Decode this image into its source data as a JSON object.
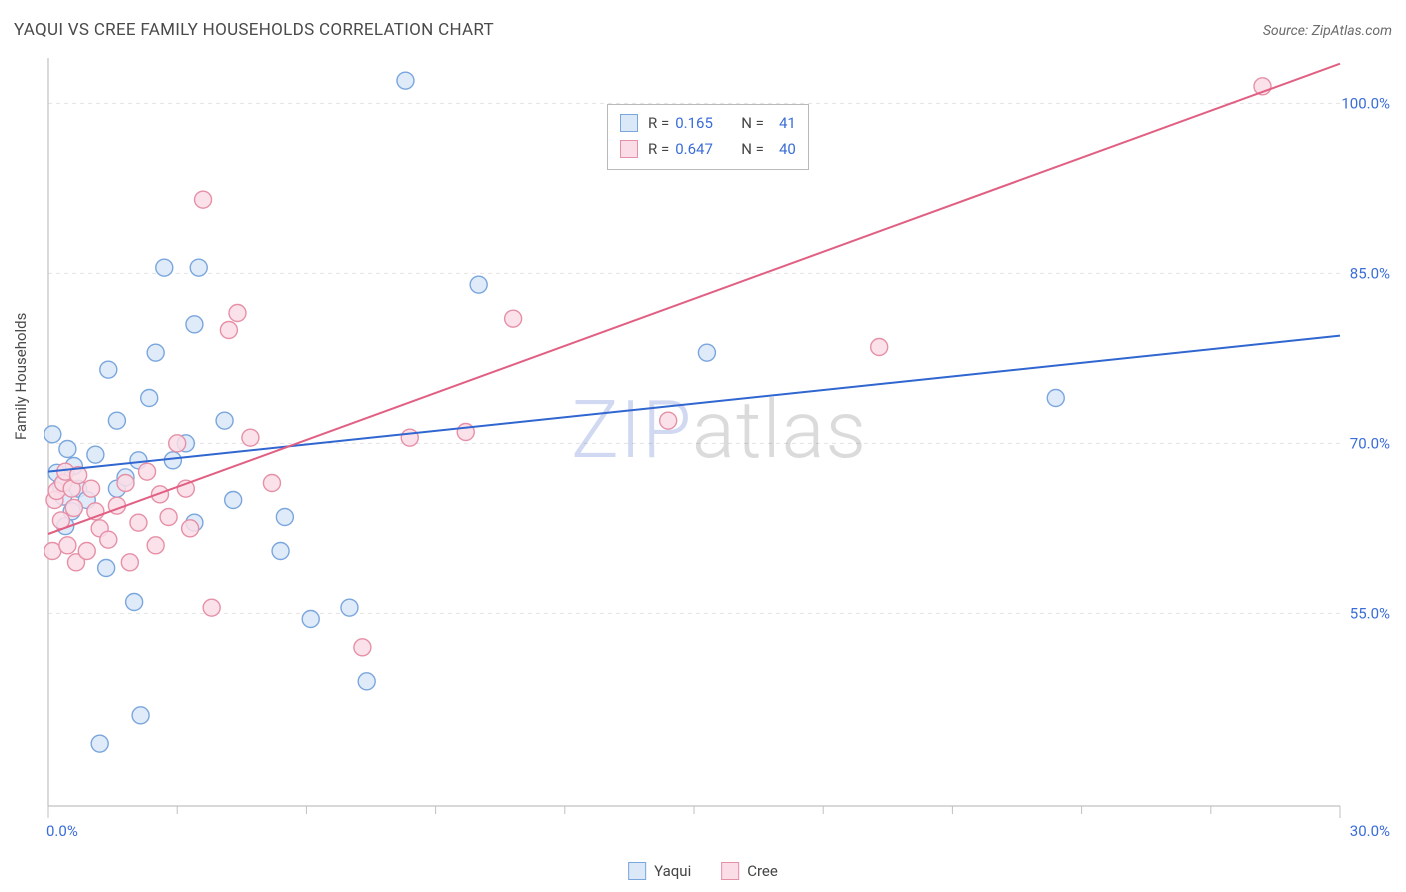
{
  "header": {
    "title": "YAQUI VS CREE FAMILY HOUSEHOLDS CORRELATION CHART",
    "source_prefix": "Source: ",
    "source_name": "ZipAtlas.com"
  },
  "ylabel": "Family Households",
  "watermark": {
    "zip": "ZIP",
    "rest": "atlas"
  },
  "chart": {
    "type": "scatter",
    "background_color": "#ffffff",
    "grid_color": "#e3e3e3",
    "axis_color": "#c0c0c0",
    "tick_color": "#c0c0c0",
    "xlim": [
      0,
      30
    ],
    "ylim": [
      38,
      104
    ],
    "x_ticks_major": [
      0,
      30
    ],
    "x_ticks_minor": [
      3,
      6,
      9,
      12,
      15,
      18,
      21,
      24,
      27
    ],
    "x_tick_labels": {
      "0": "0.0%",
      "30": "30.0%"
    },
    "y_gridlines": [
      55,
      70,
      85,
      100
    ],
    "y_tick_labels": {
      "55": "55.0%",
      "70": "70.0%",
      "85": "85.0%",
      "100": "100.0%"
    },
    "label_color": "#3a6dd8",
    "label_fontsize": 15,
    "marker_radius": 8.5,
    "marker_stroke_width": 1.4,
    "series": {
      "yaqui": {
        "label": "Yaqui",
        "fill": "#dbe8f8",
        "stroke": "#7aa6de",
        "line_color": "#2f66d0",
        "line_width": 2,
        "r": 0.165,
        "n": 41,
        "trend": {
          "x1": 0,
          "y1": 67.5,
          "x2": 30,
          "y2": 79.5
        },
        "points": [
          [
            0.1,
            70.8
          ],
          [
            0.2,
            67.4
          ],
          [
            0.3,
            66.2
          ],
          [
            0.35,
            65.3
          ],
          [
            0.45,
            69.5
          ],
          [
            0.4,
            62.7
          ],
          [
            0.55,
            64.0
          ],
          [
            0.6,
            68.0
          ],
          [
            0.7,
            66.0
          ],
          [
            0.9,
            65.0
          ],
          [
            1.1,
            69.0
          ],
          [
            1.2,
            43.5
          ],
          [
            1.35,
            59.0
          ],
          [
            1.4,
            76.5
          ],
          [
            1.6,
            72.0
          ],
          [
            1.6,
            66.0
          ],
          [
            1.8,
            67.0
          ],
          [
            2.0,
            56.0
          ],
          [
            2.1,
            68.5
          ],
          [
            2.15,
            46.0
          ],
          [
            2.35,
            74.0
          ],
          [
            2.5,
            78.0
          ],
          [
            2.7,
            85.5
          ],
          [
            2.9,
            68.5
          ],
          [
            3.2,
            70.0
          ],
          [
            3.4,
            63.0
          ],
          [
            3.4,
            80.5
          ],
          [
            3.5,
            85.5
          ],
          [
            4.1,
            72.0
          ],
          [
            4.3,
            65.0
          ],
          [
            5.4,
            60.5
          ],
          [
            5.5,
            63.5
          ],
          [
            6.1,
            54.5
          ],
          [
            7.0,
            55.5
          ],
          [
            7.4,
            49.0
          ],
          [
            8.3,
            102.0
          ],
          [
            10.0,
            84.0
          ],
          [
            15.3,
            78.0
          ],
          [
            23.4,
            74.0
          ]
        ]
      },
      "cree": {
        "label": "Cree",
        "fill": "#fadde6",
        "stroke": "#e690a7",
        "line_color": "#e15f82",
        "line_width": 2,
        "r": 0.647,
        "n": 40,
        "trend": {
          "x1": 0,
          "y1": 62.0,
          "x2": 30,
          "y2": 103.5
        },
        "points": [
          [
            0.1,
            60.5
          ],
          [
            0.15,
            65.0
          ],
          [
            0.2,
            65.8
          ],
          [
            0.3,
            63.2
          ],
          [
            0.35,
            66.5
          ],
          [
            0.4,
            67.5
          ],
          [
            0.45,
            61.0
          ],
          [
            0.55,
            66.0
          ],
          [
            0.6,
            64.3
          ],
          [
            0.65,
            59.5
          ],
          [
            0.7,
            67.2
          ],
          [
            0.9,
            60.5
          ],
          [
            1.0,
            66.0
          ],
          [
            1.1,
            64.0
          ],
          [
            1.2,
            62.5
          ],
          [
            1.4,
            61.5
          ],
          [
            1.6,
            64.5
          ],
          [
            1.8,
            66.5
          ],
          [
            1.9,
            59.5
          ],
          [
            2.1,
            63.0
          ],
          [
            2.3,
            67.5
          ],
          [
            2.5,
            61.0
          ],
          [
            2.6,
            65.5
          ],
          [
            2.8,
            63.5
          ],
          [
            3.0,
            70.0
          ],
          [
            3.2,
            66.0
          ],
          [
            3.3,
            62.5
          ],
          [
            3.6,
            91.5
          ],
          [
            3.8,
            55.5
          ],
          [
            4.2,
            80.0
          ],
          [
            4.4,
            81.5
          ],
          [
            4.7,
            70.5
          ],
          [
            5.2,
            66.5
          ],
          [
            7.3,
            52.0
          ],
          [
            8.4,
            70.5
          ],
          [
            9.7,
            71.0
          ],
          [
            10.8,
            81.0
          ],
          [
            14.4,
            72.0
          ],
          [
            19.3,
            78.5
          ],
          [
            28.2,
            101.5
          ]
        ]
      }
    }
  },
  "stats_box": {
    "r_label": "R =",
    "n_label": "N ="
  },
  "legend": {
    "items": [
      "yaqui",
      "cree"
    ]
  }
}
